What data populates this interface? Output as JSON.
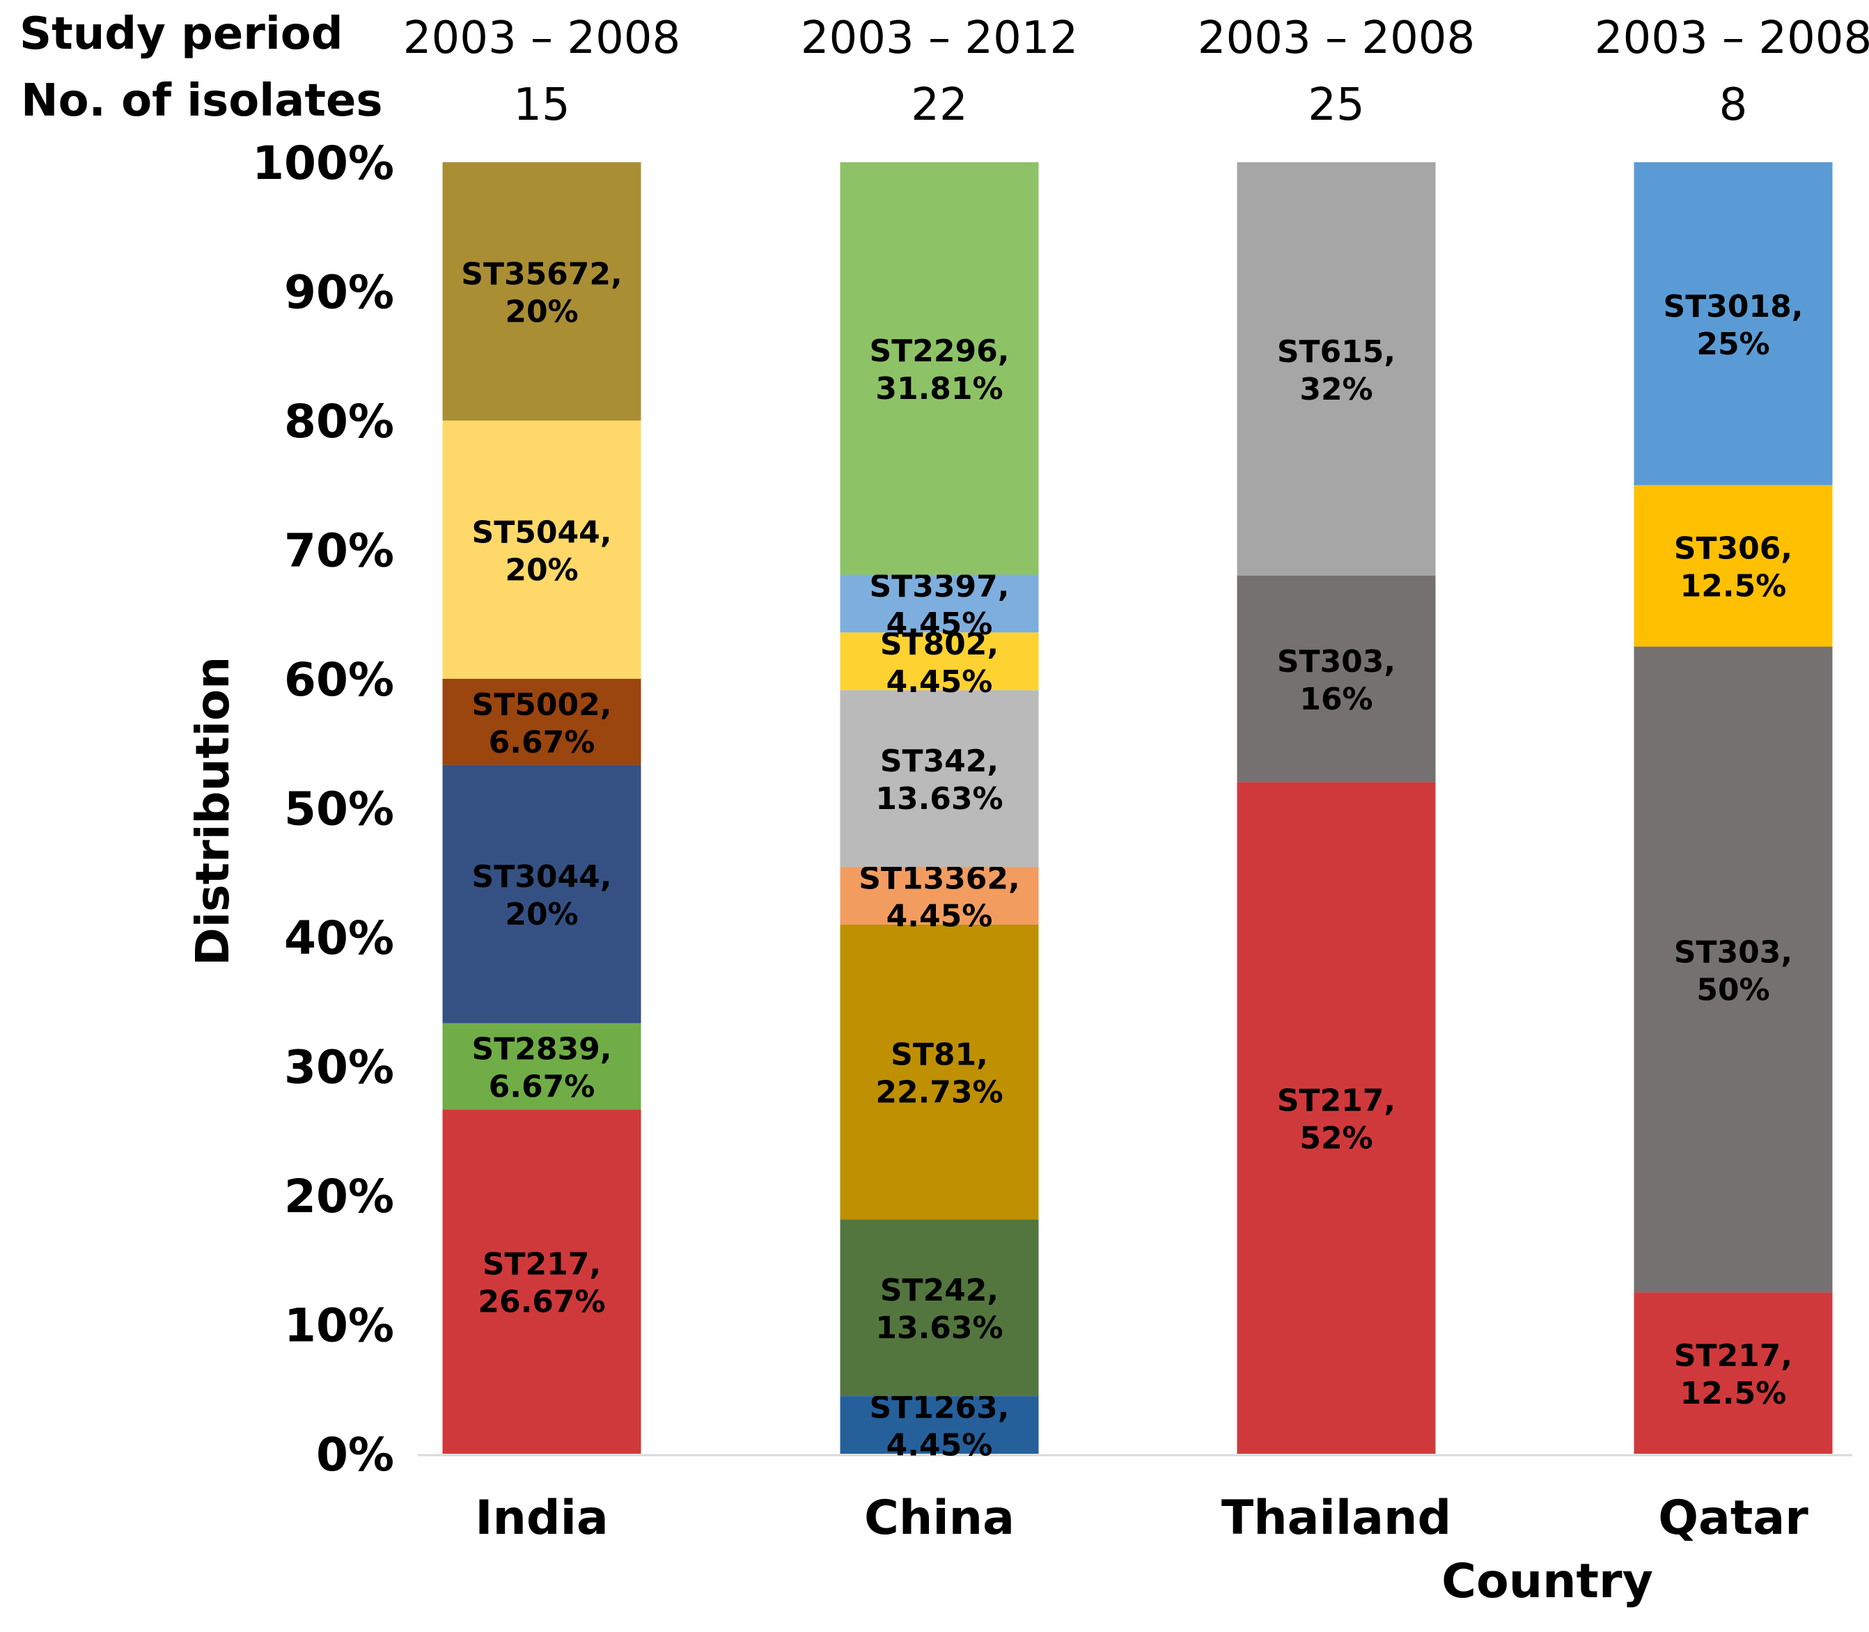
{
  "chart_data": {
    "type": "bar",
    "stacked": true,
    "title": "",
    "xlabel": "Country",
    "ylabel": "Distribution",
    "ylim": [
      0,
      100
    ],
    "yticks": [
      "0%",
      "10%",
      "20%",
      "30%",
      "40%",
      "50%",
      "60%",
      "70%",
      "80%",
      "90%",
      "100%"
    ],
    "header_labels": {
      "study_period": "Study period",
      "isolates": "No. of isolates"
    },
    "categories": [
      "India",
      "China",
      "Thailand",
      "Qatar"
    ],
    "study_periods": [
      "2003 – 2008",
      "2003 – 2012",
      "2003 – 2008",
      "2003 – 2008"
    ],
    "isolates": [
      "15",
      "22",
      "25",
      "8"
    ],
    "stacks": [
      [
        {
          "name": "ST217",
          "value": 26.67,
          "label": "26.67%",
          "color": "#d0393b"
        },
        {
          "name": "ST2839",
          "value": 6.67,
          "label": "6.67%",
          "color": "#70ad47"
        },
        {
          "name": "ST3044",
          "value": 20,
          "label": "20%",
          "color": "#355184"
        },
        {
          "name": "ST5002",
          "value": 6.67,
          "label": "6.67%",
          "color": "#9b450f"
        },
        {
          "name": "ST5044",
          "value": 20,
          "label": "20%",
          "color": "#fed869"
        },
        {
          "name": "ST35672",
          "value": 20,
          "label": "20%",
          "color": "#aa8e34"
        }
      ],
      [
        {
          "name": "ST1263",
          "value": 4.45,
          "label": "4.45%",
          "color": "#25609b"
        },
        {
          "name": "ST242",
          "value": 13.63,
          "label": "13.63%",
          "color": "#53763f"
        },
        {
          "name": "ST81",
          "value": 22.73,
          "label": "22.73%",
          "color": "#bf9001"
        },
        {
          "name": "ST13362",
          "value": 4.45,
          "label": "4.45%",
          "color": "#f29c60"
        },
        {
          "name": "ST342",
          "value": 13.63,
          "label": "13.63%",
          "color": "#bababa"
        },
        {
          "name": "ST802",
          "value": 4.45,
          "label": "4.45%",
          "color": "#fed230"
        },
        {
          "name": "ST3397",
          "value": 4.45,
          "label": "4.45%",
          "color": "#7eaedd"
        },
        {
          "name": "ST2296",
          "value": 31.81,
          "label": "31.81%",
          "color": "#8dc266"
        }
      ],
      [
        {
          "name": "ST217",
          "value": 52,
          "label": "52%",
          "color": "#d0393b"
        },
        {
          "name": "ST303",
          "value": 16,
          "label": "16%",
          "color": "#757171"
        },
        {
          "name": "ST615",
          "value": 32,
          "label": "32%",
          "color": "#a6a6a6"
        }
      ],
      [
        {
          "name": "ST217",
          "value": 12.5,
          "label": "12.5%",
          "color": "#d0393b"
        },
        {
          "name": "ST303",
          "value": 50,
          "label": "50%",
          "color": "#757171"
        },
        {
          "name": "ST306",
          "value": 12.5,
          "label": "12.5%",
          "color": "#fec001"
        },
        {
          "name": "ST3018",
          "value": 25,
          "label": "25%",
          "color": "#5b9bd5"
        }
      ]
    ]
  }
}
